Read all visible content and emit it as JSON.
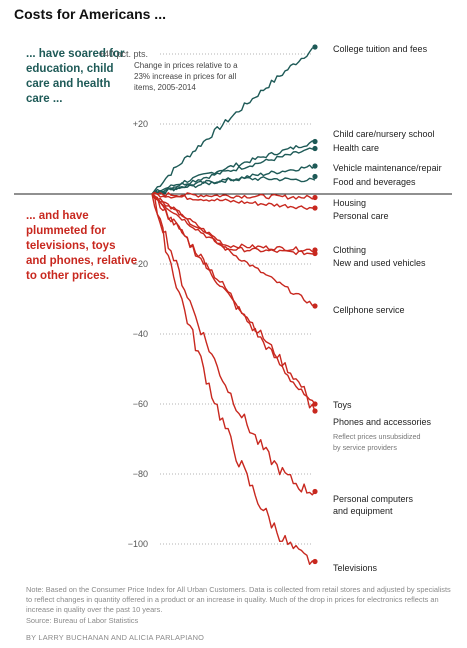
{
  "title": "Costs for Americans ...",
  "intro_up": "... have soared for education, child care and health care ...",
  "intro_down": "... and have plummeted for televisions, toys and phones, relative to other prices.",
  "annotation": "Change in prices relative to a 23% increase in prices for all items, 2005-2014",
  "note": "Note: Based on the Consumer Price Index for All Urban Customers. Data is collected from retail stores and adjusted by specialists to reflect changes in quantity offered in a product or an increase in quality. Much of the drop in prices for electronics reflects an increase in quality over the past 10 years.",
  "source": "Source: Bureau of Labor Statistics",
  "byline": "By LARRY BUCHANAN and ALICIA PARLAPIANO",
  "colors": {
    "up": "#1e5a57",
    "down": "#c8281f",
    "zero": "#222222",
    "grid": "#9a9a9a"
  },
  "chart_data": {
    "type": "line",
    "x_range": [
      "2005",
      "2014"
    ],
    "ylim": [
      -110,
      42
    ],
    "y_ticks": [
      {
        "value": 40,
        "label": "+40 pct. pts."
      },
      {
        "value": 20,
        "label": "+20"
      },
      {
        "value": 0,
        "label": ""
      },
      {
        "value": -20,
        "label": "−20"
      },
      {
        "value": -40,
        "label": "−40"
      },
      {
        "value": -60,
        "label": "−60"
      },
      {
        "value": -80,
        "label": "−80"
      },
      {
        "value": -100,
        "label": "−100"
      }
    ],
    "series": [
      {
        "name": "College tuition and fees",
        "direction": "up",
        "final": 42,
        "shape": "smooth",
        "label_lines": [
          "College tuition and fees"
        ]
      },
      {
        "name": "Child care/nursery school",
        "direction": "up",
        "final": 15,
        "shape": "smooth",
        "label_lines": [
          "Child care/nursery school"
        ]
      },
      {
        "name": "Health care",
        "direction": "up",
        "final": 13,
        "shape": "smooth",
        "label_lines": [
          "Health care"
        ]
      },
      {
        "name": "Vehicle maintenance/repair",
        "direction": "up",
        "final": 8,
        "shape": "smooth",
        "label_lines": [
          "Vehicle maintenance/repair"
        ]
      },
      {
        "name": "Food and beverages",
        "direction": "up",
        "final": 5,
        "shape": "dip",
        "label_lines": [
          "Food and beverages"
        ]
      },
      {
        "name": "Housing",
        "direction": "down",
        "final": -1,
        "shape": "smooth",
        "label_lines": [
          "Housing"
        ]
      },
      {
        "name": "Personal care",
        "direction": "down",
        "final": -4,
        "shape": "smooth",
        "label_lines": [
          "Personal care"
        ]
      },
      {
        "name": "Clothing",
        "direction": "down",
        "final": -16,
        "shape": "early_drop",
        "label_lines": [
          "Clothing"
        ]
      },
      {
        "name": "New and used vehicles",
        "direction": "down",
        "final": -17,
        "shape": "early_drop",
        "label_lines": [
          "New and used vehicles"
        ]
      },
      {
        "name": "Cellphone service",
        "direction": "down",
        "final": -32,
        "shape": "smooth",
        "label_lines": [
          "Cellphone service"
        ]
      },
      {
        "name": "Toys",
        "direction": "down",
        "final": -60,
        "shape": "straight",
        "label_lines": [
          "Toys"
        ]
      },
      {
        "name": "Phones and accessories",
        "direction": "down",
        "final": -62,
        "shape": "straight",
        "label_lines": [
          "Phones and accessories"
        ],
        "sublabel_lines": [
          "Reflect prices unsubsidized",
          "by service providers"
        ]
      },
      {
        "name": "Personal computers and equipment",
        "direction": "down",
        "final": -85,
        "shape": "fast",
        "label_lines": [
          "Personal computers",
          "and equipment"
        ]
      },
      {
        "name": "Televisions",
        "direction": "down",
        "final": -105,
        "shape": "fast",
        "label_lines": [
          "Televisions"
        ]
      }
    ]
  }
}
